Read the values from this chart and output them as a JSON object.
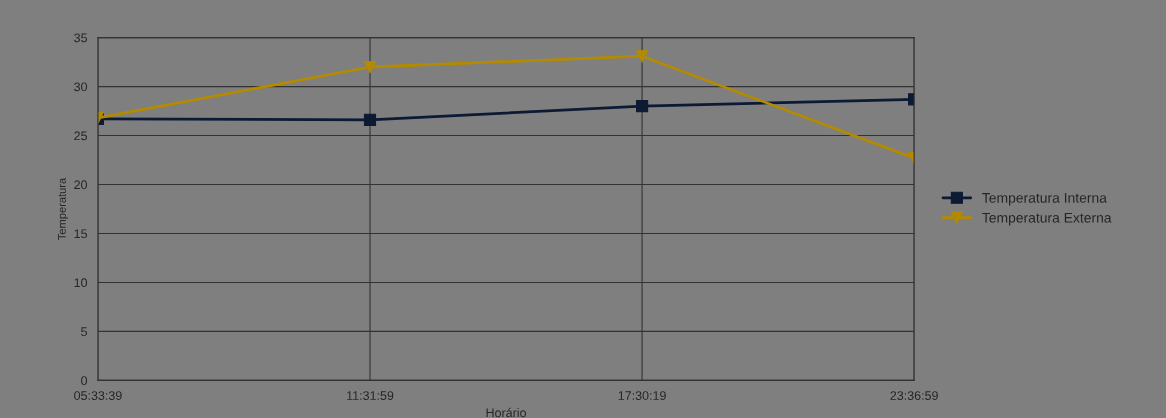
{
  "chart_data": {
    "type": "line",
    "xlabel": "Horário",
    "ylabel": "Temperatura",
    "categories": [
      "05:33:39",
      "11:31:59",
      "17:30:19",
      "23:36:59"
    ],
    "series": [
      {
        "name": "Temperatura Interna",
        "color": "#0d1a33",
        "marker": "square",
        "values": [
          26.7,
          26.6,
          28.0,
          28.7
        ]
      },
      {
        "name": "Temperatura Externa",
        "color": "#b38a00",
        "marker": "triangle",
        "values": [
          26.8,
          32.0,
          33.1,
          22.7
        ]
      }
    ],
    "ylim": [
      0,
      35
    ],
    "yticks": [
      0,
      5,
      10,
      15,
      20,
      25,
      30,
      35
    ],
    "grid": true,
    "legend": "right"
  }
}
